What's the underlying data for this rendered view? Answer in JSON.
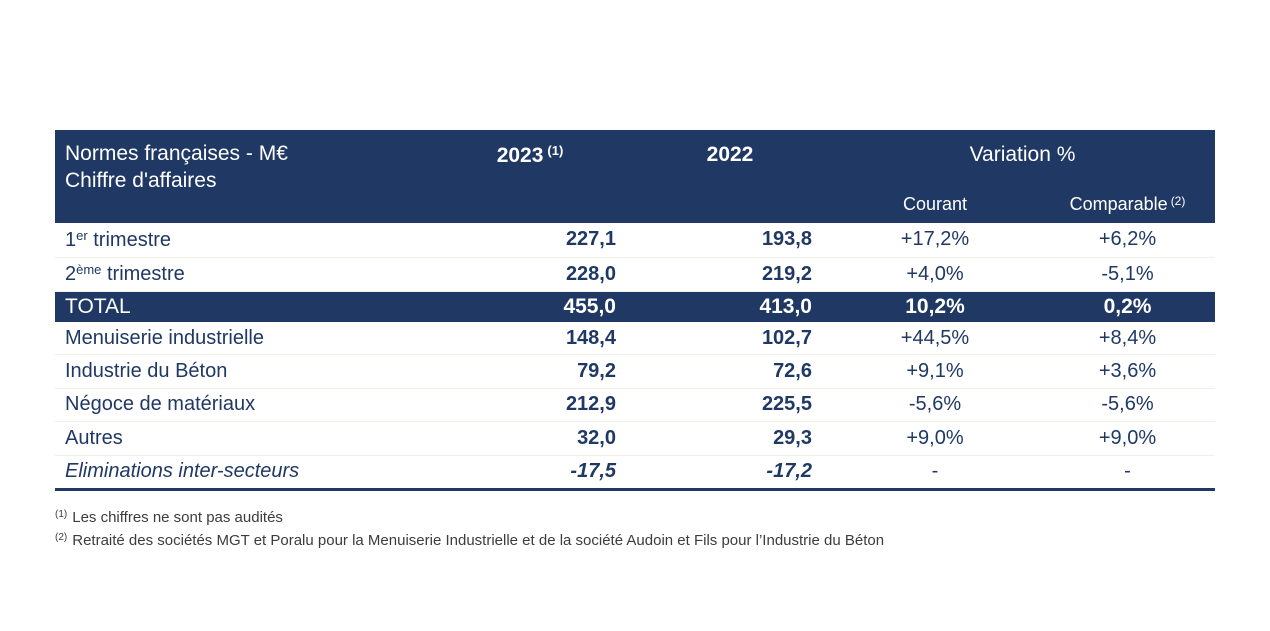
{
  "colors": {
    "navy_background": "#1f3864",
    "body_text": "#1f3864",
    "footnote_text": "#3c3c3c"
  },
  "table": {
    "header": {
      "title_line1": "Normes françaises - M€",
      "title_line2": "Chiffre d'affaires",
      "year_2023": "2023",
      "year_2023_sup": "(1)",
      "year_2022": "2022",
      "variation": "Variation %",
      "courant": "Courant",
      "comparable": "Comparable",
      "comparable_sup": "(2)"
    },
    "rows": [
      {
        "label": "1",
        "label_sup": "er",
        "label_rest": " trimestre",
        "y2023": "227,1",
        "y2022": "193,8",
        "courant": "+17,2%",
        "comparable": "+6,2%"
      },
      {
        "label": "2",
        "label_sup": "ème",
        "label_rest": " trimestre",
        "y2023": "228,0",
        "y2022": "219,2",
        "courant": "+4,0%",
        "comparable": "-5,1%"
      },
      {
        "label": "Menuiserie industrielle",
        "y2023": "148,4",
        "y2022": "102,7",
        "courant": "+44,5%",
        "comparable": "+8,4%"
      },
      {
        "label": "Industrie du Béton",
        "y2023": "79,2",
        "y2022": "72,6",
        "courant": "+9,1%",
        "comparable": "+3,6%"
      },
      {
        "label": "Négoce de matériaux",
        "y2023": "212,9",
        "y2022": "225,5",
        "courant": "-5,6%",
        "comparable": "-5,6%"
      },
      {
        "label": "Autres",
        "y2023": "32,0",
        "y2022": "29,3",
        "courant": "+9,0%",
        "comparable": "+9,0%"
      },
      {
        "label": "Eliminations inter-secteurs",
        "y2023": "-17,5",
        "y2022": "-17,2",
        "courant": "-",
        "comparable": "-"
      }
    ],
    "total": {
      "label": "TOTAL",
      "y2023": "455,0",
      "y2022": "413,0",
      "courant": "10,2%",
      "comparable": "0,2%"
    }
  },
  "footnotes": [
    {
      "sup": "(1)",
      "text": "Les chiffres ne sont pas audités"
    },
    {
      "sup": "(2)",
      "text": "Retraité des sociétés MGT et Poralu pour la Menuiserie Industrielle et de la société Audoin et Fils pour l’Industrie du Béton"
    }
  ]
}
